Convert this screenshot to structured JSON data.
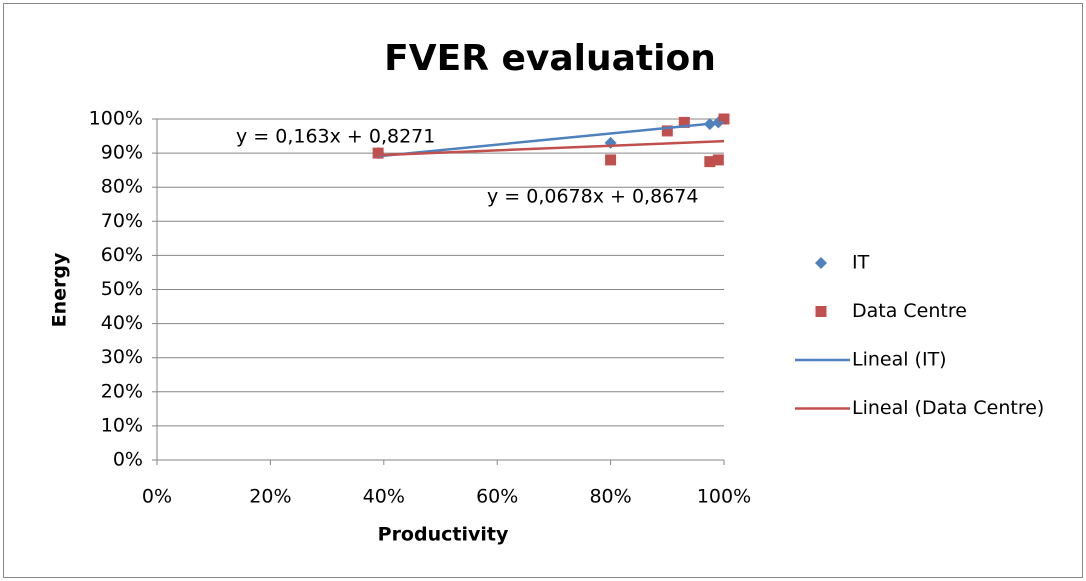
{
  "chart_data": {
    "type": "scatter",
    "title": "FVER evaluation",
    "xlabel": "Productivity",
    "ylabel": "Energy",
    "xlim": [
      0,
      1
    ],
    "ylim": [
      0,
      1
    ],
    "xticks": [
      {
        "value": 0,
        "label": "0%"
      },
      {
        "value": 0.2,
        "label": "20%"
      },
      {
        "value": 0.4,
        "label": "40%"
      },
      {
        "value": 0.6,
        "label": "60%"
      },
      {
        "value": 0.8,
        "label": "80%"
      },
      {
        "value": 1,
        "label": "100%"
      }
    ],
    "yticks": [
      {
        "value": 0,
        "label": "0%"
      },
      {
        "value": 0.1,
        "label": "10%"
      },
      {
        "value": 0.2,
        "label": "20%"
      },
      {
        "value": 0.3,
        "label": "30%"
      },
      {
        "value": 0.4,
        "label": "40%"
      },
      {
        "value": 0.5,
        "label": "50%"
      },
      {
        "value": 0.6,
        "label": "60%"
      },
      {
        "value": 0.7,
        "label": "70%"
      },
      {
        "value": 0.8,
        "label": "80%"
      },
      {
        "value": 0.9,
        "label": "90%"
      },
      {
        "value": 1,
        "label": "100%"
      }
    ],
    "grid": true,
    "legend": "right",
    "series": [
      {
        "name": "IT",
        "color": "#4f81bd",
        "marker": "diamond",
        "x": [
          0.39,
          0.8,
          0.975,
          0.99
        ],
        "values": [
          0.9,
          0.93,
          0.985,
          0.99
        ]
      },
      {
        "name": "Data Centre",
        "color": "#c0504d",
        "marker": "square",
        "x": [
          0.39,
          0.8,
          0.9,
          0.93,
          0.975,
          0.99,
          1.0
        ],
        "values": [
          0.9,
          0.88,
          0.965,
          0.99,
          0.875,
          0.88,
          1.0
        ]
      }
    ],
    "trendlines": [
      {
        "name": "Lineal (IT)",
        "color": "#4f81bd",
        "x": [
          0.39,
          1.0
        ],
        "values": [
          0.8907,
          0.9901
        ],
        "equation": "y = 0,163x + 0,8271"
      },
      {
        "name": "Lineal (Data Centre)",
        "color": "#c0504d",
        "x": [
          0.39,
          1.0
        ],
        "values": [
          0.8938,
          0.9352
        ],
        "equation": "y = 0,0678x + 0,8674"
      }
    ]
  }
}
